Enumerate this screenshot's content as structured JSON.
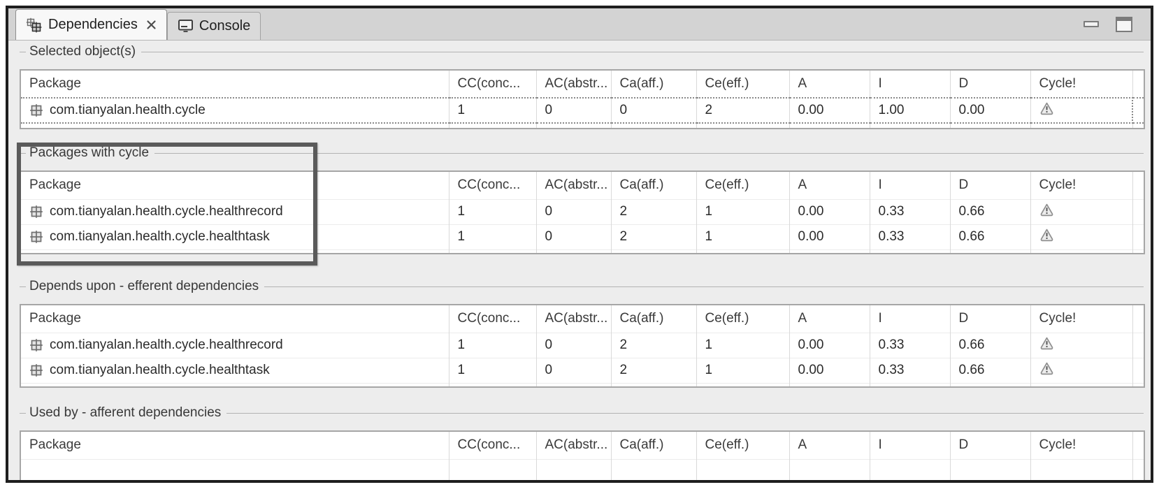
{
  "colors": {
    "highlight_box": "#5a5a5a",
    "tab_bar_bg": "#d3d3d3",
    "active_tab_bg": "#f8f8f8",
    "table_bg": "#ffffff",
    "frame_border": "#1e1e1e",
    "selection_dotted": "#8a8a8a",
    "warning_icon_gray": "#8f8f8f"
  },
  "tab_bar": {
    "tabs": [
      {
        "label": "Dependencies",
        "icon": "dependencies-packages-icon",
        "active": true,
        "closable": true
      },
      {
        "label": "Console",
        "icon": "console-icon",
        "active": false,
        "closable": false
      }
    ],
    "window_controls": [
      {
        "name": "minimize",
        "icon": "minimize-icon"
      },
      {
        "name": "maximize",
        "icon": "maximize-icon"
      }
    ]
  },
  "table_columns": [
    "Package",
    "CC(conc...",
    "AC(abstr...",
    "Ca(aff.)",
    "Ce(eff.)",
    "A",
    "I",
    "D",
    "Cycle!"
  ],
  "sections": [
    {
      "id": "selected-objects",
      "title": "Selected object(s)",
      "highlighted": false,
      "rows": [
        {
          "package": "com.tianyalan.health.cycle",
          "values": [
            "1",
            "0",
            "0",
            "2",
            "0.00",
            "1.00",
            "0.00"
          ],
          "cycle_warning": true,
          "selected": true
        }
      ]
    },
    {
      "id": "packages-with-cycle",
      "title": "Packages with cycle",
      "highlighted": true,
      "rows": [
        {
          "package": "com.tianyalan.health.cycle.healthrecord",
          "values": [
            "1",
            "0",
            "2",
            "1",
            "0.00",
            "0.33",
            "0.66"
          ],
          "cycle_warning": true,
          "selected": false
        },
        {
          "package": "com.tianyalan.health.cycle.healthtask",
          "values": [
            "1",
            "0",
            "2",
            "1",
            "0.00",
            "0.33",
            "0.66"
          ],
          "cycle_warning": true,
          "selected": false
        }
      ]
    },
    {
      "id": "depends-upon-efferent",
      "title": "Depends upon - efferent dependencies",
      "highlighted": false,
      "rows": [
        {
          "package": "com.tianyalan.health.cycle.healthrecord",
          "values": [
            "1",
            "0",
            "2",
            "1",
            "0.00",
            "0.33",
            "0.66"
          ],
          "cycle_warning": true,
          "selected": false
        },
        {
          "package": "com.tianyalan.health.cycle.healthtask",
          "values": [
            "1",
            "0",
            "2",
            "1",
            "0.00",
            "0.33",
            "0.66"
          ],
          "cycle_warning": true,
          "selected": false
        }
      ]
    },
    {
      "id": "used-by-afferent",
      "title": "Used by - afferent dependencies",
      "highlighted": false,
      "rows": []
    }
  ]
}
